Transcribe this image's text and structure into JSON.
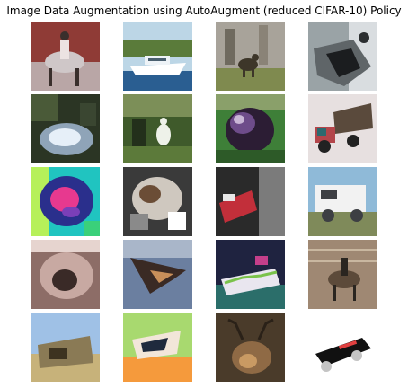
{
  "title": "Image Data Augmentation using AutoAugment (reduced CIFAR-10) Policy",
  "images": [
    {
      "name": "horse-rider-thumbnail",
      "colors": {
        "bg": "#8f3b36",
        "mid": "#cfc7c8",
        "accent": "#3a2f2c",
        "hi": "#ece3e2"
      }
    },
    {
      "name": "boat-thumbnail",
      "colors": {
        "bg": "#8fb5cc",
        "mid": "#ffffff",
        "accent": "#2a5e91",
        "hi": "#5a7b3a"
      }
    },
    {
      "name": "deer-field-thumbnail",
      "colors": {
        "bg": "#a8a39a",
        "mid": "#6f6a5f",
        "accent": "#3d3629",
        "hi": "#cfc6b8"
      }
    },
    {
      "name": "deer-closeup-thumbnail",
      "colors": {
        "bg": "#9aa3a6",
        "mid": "#5f6568",
        "accent": "#1b1d1f",
        "hi": "#d9dde0"
      }
    },
    {
      "name": "frog-dark-thumbnail",
      "colors": {
        "bg": "#2b3524",
        "mid": "#8fa4b8",
        "accent": "#e6eff8",
        "hi": "#4a5a38"
      }
    },
    {
      "name": "bird-forest-thumbnail",
      "colors": {
        "bg": "#3f5a2b",
        "mid": "#7c8f58",
        "accent": "#eef1e9",
        "hi": "#23301b"
      }
    },
    {
      "name": "purple-ball-thumbnail",
      "colors": {
        "bg": "#3e7f38",
        "mid": "#2c1d34",
        "accent": "#6e4c8a",
        "hi": "#c9b6d6"
      }
    },
    {
      "name": "truck-pink-thumbnail",
      "colors": {
        "bg": "#e7e0e0",
        "mid": "#5a4a3c",
        "accent": "#2d6a6f",
        "hi": "#b3454a"
      }
    },
    {
      "name": "colorful-frog-thumbnail",
      "colors": {
        "bg": "#20c4c0",
        "mid": "#2a2f8c",
        "accent": "#e7398f",
        "hi": "#b6f05a"
      }
    },
    {
      "name": "cat-pattern-thumbnail",
      "colors": {
        "bg": "#3a3a3a",
        "mid": "#cfc8bf",
        "accent": "#6b4d36",
        "hi": "#ffffff"
      }
    },
    {
      "name": "red-car-thumbnail",
      "colors": {
        "bg": "#7b7b7b",
        "mid": "#c22f3a",
        "accent": "#2a2a2a",
        "hi": "#e7e7e7"
      }
    },
    {
      "name": "white-truck-thumbnail",
      "colors": {
        "bg": "#8fbad8",
        "mid": "#f2f2f2",
        "accent": "#3d3f43",
        "hi": "#7f8a5a"
      }
    },
    {
      "name": "dog-face-thumbnail",
      "colors": {
        "bg": "#8d6d67",
        "mid": "#c8a9a2",
        "accent": "#3a2a27",
        "hi": "#e6d4cf"
      }
    },
    {
      "name": "airplane-dark-thumbnail",
      "colors": {
        "bg": "#6b7fa0",
        "mid": "#3a2a24",
        "accent": "#c88f5a",
        "hi": "#a9b6c9"
      }
    },
    {
      "name": "colorful-car-thumbnail",
      "colors": {
        "bg": "#1f2340",
        "mid": "#e9e6ef",
        "accent": "#7ac24a",
        "hi": "#c43f8a"
      }
    },
    {
      "name": "horse-fence-thumbnail",
      "colors": {
        "bg": "#9f8873",
        "mid": "#5c4a3a",
        "accent": "#2a2520",
        "hi": "#c9b7a0"
      }
    },
    {
      "name": "truck-blurry-thumbnail",
      "colors": {
        "bg": "#9fc1e6",
        "mid": "#8a7a55",
        "accent": "#3d3320",
        "hi": "#c7b27a"
      }
    },
    {
      "name": "bird-colorful-thumbnail",
      "colors": {
        "bg": "#a8d96f",
        "mid": "#f2e6d9",
        "accent": "#1f2a3d",
        "hi": "#f59a3c"
      }
    },
    {
      "name": "deer-antlers-thumbnail",
      "colors": {
        "bg": "#4a3b2a",
        "mid": "#8f6a45",
        "accent": "#c99a63",
        "hi": "#2a2118"
      }
    },
    {
      "name": "black-truck-thumbnail",
      "colors": {
        "bg": "#ffffff",
        "mid": "#111111",
        "accent": "#c4c4c4",
        "hi": "#e04040"
      }
    }
  ]
}
